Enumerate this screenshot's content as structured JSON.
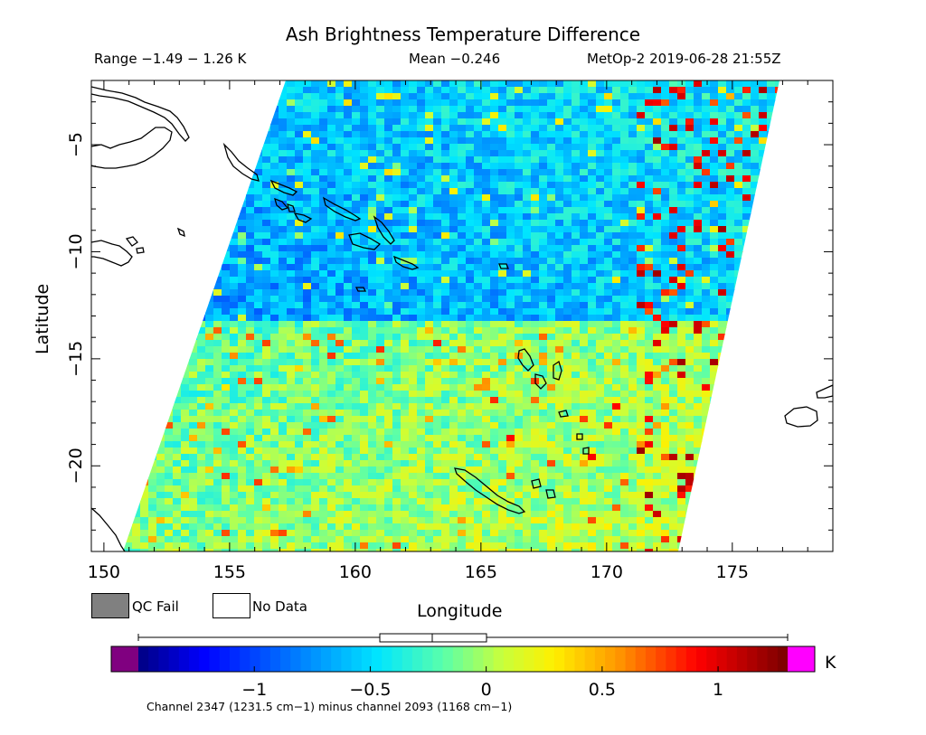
{
  "title": "Ash Brightness Temperature Difference",
  "range_text": "Range −1.49 − 1.26 K",
  "mean_text": "Mean −0.246",
  "satellite_time": "MetOp-2 2019-06-28 21:55Z",
  "axes": {
    "xlabel": "Longitude",
    "ylabel": "Latitude",
    "xticks": [
      "150",
      "155",
      "160",
      "165",
      "170",
      "175"
    ],
    "yticks": [
      "−5",
      "−10",
      "−15",
      "−20"
    ]
  },
  "legend": {
    "qc_fail": "QC Fail",
    "no_data": "No Data"
  },
  "colorbar": {
    "unit": "K",
    "ticks": [
      "−1",
      "−0.5",
      "0",
      "0.5",
      "1"
    ],
    "range": [
      -1.5,
      1.3
    ],
    "under_color": "#800080",
    "over_color": "#ff00ff"
  },
  "footer": "Channel 2347 (1231.5 cm−1) minus channel 2093 (1168 cm−1)",
  "chart_data": {
    "type": "heatmap",
    "title": "Ash Brightness Temperature Difference",
    "xlabel": "Longitude",
    "ylabel": "Latitude",
    "xlim": [
      149.5,
      179
    ],
    "ylim": [
      -24,
      -2
    ],
    "value_range": [
      -1.49,
      1.26
    ],
    "mean": -0.246,
    "unit": "K",
    "colormap": "rainbow (purple-blue-cyan-green-yellow-red-darkred)"
  }
}
